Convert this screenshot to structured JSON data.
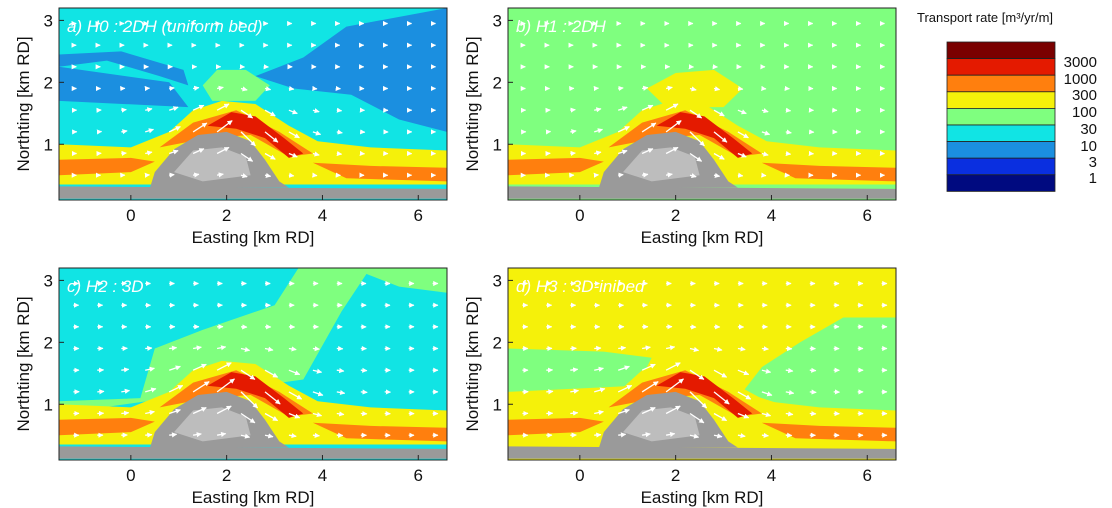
{
  "colorbar": {
    "title": "Transport rate [m³/yr/m]",
    "labels": [
      "3000",
      "1000",
      "300",
      "100",
      "30",
      "10",
      "3",
      "1"
    ],
    "colors": [
      "#7a0000",
      "#e41a00",
      "#ff7f0e",
      "#f5f10a",
      "#7fff7f",
      "#11e4e4",
      "#1b8fe0",
      "#0a2fe0",
      "#000a80"
    ]
  },
  "palette": {
    "shoal_gray": "#9a9a9a",
    "shoal_light": "#bdbdbd",
    "arrow": "#ffffff"
  },
  "chart_data": [
    {
      "type": "heatmap",
      "title": "a) H0 : 2DH (uniform bed)",
      "xlabel": "Easting [km RD]",
      "ylabel": "Northting [km RD]",
      "xlim": [
        -1.5,
        6.6
      ],
      "ylim": [
        0.1,
        3.2
      ],
      "xticks": [
        "0",
        "2",
        "4",
        "6"
      ],
      "yticks": [
        "1",
        "2",
        "3"
      ],
      "background_class": "10-30",
      "dominant_classes": [
        "10-30",
        "3-10",
        "1000-3000",
        "300-1000"
      ]
    },
    {
      "type": "heatmap",
      "title": "b) H1 : 2DH",
      "xlabel": "Easting [km RD]",
      "ylabel": "Northting [km RD]",
      "xlim": [
        -1.5,
        6.6
      ],
      "ylim": [
        0.1,
        3.2
      ],
      "xticks": [
        "0",
        "2",
        "4",
        "6"
      ],
      "yticks": [
        "1",
        "2",
        "3"
      ],
      "background_class": "30-100",
      "dominant_classes": [
        "30-100",
        "100-300",
        "1000-3000",
        "300-1000"
      ]
    },
    {
      "type": "heatmap",
      "title": "c) H2 : 3D",
      "xlabel": "Easting [km RD]",
      "ylabel": "Northting [km RD]",
      "xlim": [
        -1.5,
        6.6
      ],
      "ylim": [
        0.1,
        3.2
      ],
      "xticks": [
        "0",
        "2",
        "4",
        "6"
      ],
      "yticks": [
        "1",
        "2",
        "3"
      ],
      "background_class": "10-30",
      "dominant_classes": [
        "10-30",
        "30-100",
        "100-300",
        "1000-3000",
        "300-1000"
      ]
    },
    {
      "type": "heatmap",
      "title": "d) H3 : 3D-inibed",
      "xlabel": "Easting [km RD]",
      "ylabel": "Northting [km RD]",
      "xlim": [
        -1.5,
        6.6
      ],
      "ylim": [
        0.1,
        3.2
      ],
      "xticks": [
        "0",
        "2",
        "4",
        "6"
      ],
      "yticks": [
        "1",
        "2",
        "3"
      ],
      "background_class": "100-300",
      "dominant_classes": [
        "100-300",
        "30-100",
        "1000-3000",
        "300-1000"
      ]
    }
  ]
}
